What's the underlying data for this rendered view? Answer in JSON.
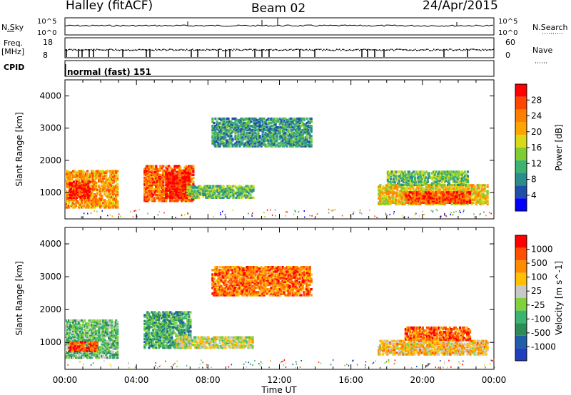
{
  "header": {
    "station": "Halley (fitACF)",
    "beam": "Beam 02",
    "date": "24/Apr/2015"
  },
  "panels": {
    "nsky": {
      "label": "N.Sky",
      "right_label": "N.Search",
      "left_ticks": [
        "10^5",
        "10^0"
      ],
      "right_ticks": [
        "10^5",
        "10^0"
      ]
    },
    "freq": {
      "label": "Freq.",
      "unit": "[MHz]",
      "right_label": "Nave",
      "left_ticks": [
        "18",
        "8"
      ],
      "right_ticks": [
        "60",
        "0"
      ]
    },
    "cpid": {
      "label": "CPID",
      "text": "normal (fast) 151"
    }
  },
  "colors": {
    "power_scale": [
      "#0000ff",
      "#1f4fa8",
      "#2e8b8b",
      "#3cb371",
      "#7fcc33",
      "#d9d91a",
      "#ffa500",
      "#ff7f00",
      "#ff4500",
      "#ff0000"
    ],
    "velocity_scale": [
      "#ff0000",
      "#ff5000",
      "#ff8c00",
      "#ffc000",
      "#c8c8c8",
      "#7fd23c",
      "#3cb371",
      "#2e8b57",
      "#1f5fa8",
      "#1f3fbf"
    ]
  },
  "chart_data": [
    {
      "type": "heatmap",
      "name": "power",
      "ylabel": "Slant Range [km]",
      "yticks": [
        1000,
        2000,
        3000,
        4000
      ],
      "ylim": [
        180,
        4500
      ],
      "xlim": [
        0,
        24
      ],
      "xticks": [
        "00:00",
        "04:00",
        "08:00",
        "12:00",
        "16:00",
        "20:00",
        "00:00"
      ],
      "colorbar": {
        "label": "Power [dB]",
        "ticks": [
          "28",
          "24",
          "20",
          "16",
          "12",
          "8",
          "4"
        ],
        "range": [
          0,
          30
        ]
      },
      "patches": [
        {
          "t0": 0.0,
          "t1": 2.9,
          "r0": 500,
          "r1": 1650,
          "level": 0.7
        },
        {
          "t0": 0.2,
          "t1": 1.4,
          "r0": 800,
          "r1": 1300,
          "level": 0.92
        },
        {
          "t0": 4.4,
          "t1": 7.2,
          "r0": 700,
          "r1": 1800,
          "level": 0.8
        },
        {
          "t0": 5.6,
          "t1": 6.9,
          "r0": 800,
          "r1": 1600,
          "level": 0.95
        },
        {
          "t0": 6.8,
          "t1": 10.5,
          "r0": 800,
          "r1": 1200,
          "level": 0.4
        },
        {
          "t0": 8.2,
          "t1": 13.8,
          "r0": 2400,
          "r1": 3300,
          "level": 0.3
        },
        {
          "t0": 17.5,
          "t1": 23.6,
          "r0": 600,
          "r1": 1200,
          "level": 0.6
        },
        {
          "t0": 19.0,
          "t1": 22.6,
          "r0": 650,
          "r1": 1000,
          "level": 0.85
        },
        {
          "t0": 18.0,
          "t1": 22.5,
          "r0": 1200,
          "r1": 1650,
          "level": 0.4
        }
      ]
    },
    {
      "type": "heatmap",
      "name": "velocity",
      "ylabel": "Slant Range [km]",
      "yticks": [
        1000,
        2000,
        3000,
        4000
      ],
      "ylim": [
        180,
        4500
      ],
      "xlim": [
        0,
        24
      ],
      "xticks": [
        "00:00",
        "04:00",
        "08:00",
        "12:00",
        "16:00",
        "20:00",
        "00:00"
      ],
      "xlabel": "Time UT",
      "colorbar": {
        "label": "Velocity [m s^-1]",
        "ticks": [
          "1000",
          "500",
          "100",
          "25",
          "-25",
          "-100",
          "-500",
          "-1000"
        ]
      },
      "patches": [
        {
          "t0": 0.0,
          "t1": 2.9,
          "r0": 500,
          "r1": 1650,
          "level": 0.6
        },
        {
          "t0": 0.2,
          "t1": 1.8,
          "r0": 700,
          "r1": 1000,
          "level": 0.12
        },
        {
          "t0": 4.4,
          "t1": 7.0,
          "r0": 800,
          "r1": 1900,
          "level": 0.68
        },
        {
          "t0": 6.2,
          "t1": 10.5,
          "r0": 800,
          "r1": 1150,
          "level": 0.45
        },
        {
          "t0": 8.2,
          "t1": 13.8,
          "r0": 2400,
          "r1": 3300,
          "level": 0.2
        },
        {
          "t0": 17.5,
          "t1": 23.6,
          "r0": 600,
          "r1": 1050,
          "level": 0.35
        },
        {
          "t0": 19.0,
          "t1": 22.6,
          "r0": 1050,
          "r1": 1450,
          "level": 0.18
        }
      ]
    }
  ]
}
